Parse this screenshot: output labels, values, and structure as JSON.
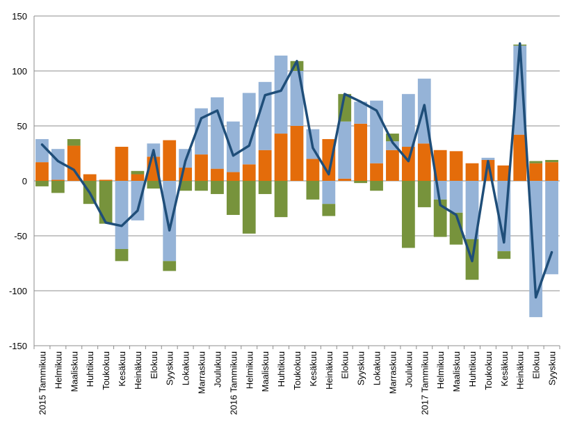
{
  "chart_data": {
    "type": "bar",
    "stacked": true,
    "ylim": [
      -150,
      150
    ],
    "yticks": [
      -150,
      -100,
      -50,
      0,
      50,
      100,
      150
    ],
    "grid": true,
    "legend": "none",
    "x_tick_labels": [
      "2015 Tammikuu",
      "Helmikuu",
      "Maaliskuu",
      "Huhtikuu",
      "Toukokuu",
      "Kesäkuu",
      "Heinäkuu",
      "Elokuu",
      "Syyskuu",
      "Lokakuu",
      "Marraskuu",
      "Joulukuu",
      "2016 Tammikuu",
      "Helmikuu",
      "Maaliskuu",
      "Huhtikuu",
      "Toukokuu",
      "Kesäkuu",
      "Heinäkuu",
      "Elokuu",
      "Syyskuu",
      "Lokakuu",
      "Marraskuu",
      "Joulukuu",
      "2017 Tammikuu",
      "Helmikuu",
      "Maaliskuu",
      "Huhtikuu",
      "Toukokuu",
      "Kesäkuu",
      "Heinäkuu",
      "Elokuu",
      "Syyskuu"
    ],
    "categories": [
      "2015-01",
      "2015-02",
      "2015-03",
      "2015-04",
      "2015-05",
      "2015-06",
      "2015-07",
      "2015-08",
      "2015-09",
      "2015-10",
      "2015-11",
      "2015-12",
      "2016-01",
      "2016-02",
      "2016-03",
      "2016-04",
      "2016-05",
      "2016-06",
      "2016-07",
      "2016-08",
      "2016-09",
      "2016-10",
      "2016-11",
      "2016-12",
      "2017-01",
      "2017-02",
      "2017-03",
      "2017-04",
      "2017-05",
      "2017-06",
      "2017-07",
      "2017-08",
      "2017-09"
    ],
    "series": [
      {
        "type": "bar",
        "color": "#e46c0a",
        "values": [
          17,
          1,
          32,
          6,
          1,
          31,
          6,
          22,
          37,
          12,
          24,
          11,
          8,
          15,
          28,
          43,
          50,
          20,
          38,
          2,
          52,
          16,
          28,
          31,
          34,
          28,
          27,
          16,
          19,
          14,
          42,
          16,
          17
        ]
      },
      {
        "type": "bar",
        "color": "#95b3d7",
        "values": [
          21,
          28,
          0,
          0,
          0,
          -62,
          -36,
          12,
          -73,
          17,
          42,
          65,
          46,
          65,
          62,
          71,
          50,
          27,
          -21,
          52,
          20,
          57,
          8,
          48,
          59,
          -17,
          -29,
          -53,
          2,
          -64,
          81,
          -124,
          -85
        ]
      },
      {
        "type": "bar",
        "color": "#77933c",
        "values": [
          -5,
          -11,
          6,
          -21,
          -39,
          -11,
          3,
          -7,
          -9,
          -9,
          -9,
          -12,
          -31,
          -48,
          -12,
          -33,
          9,
          -17,
          -11,
          25,
          -2,
          -9,
          7,
          -61,
          -24,
          -34,
          -29,
          -37,
          0,
          -7,
          1,
          2,
          2
        ]
      },
      {
        "type": "line",
        "color": "#1f4e79",
        "values": [
          33,
          18,
          10,
          -11,
          -38,
          -41,
          -27,
          28,
          -45,
          18,
          57,
          64,
          23,
          32,
          78,
          82,
          109,
          30,
          6,
          79,
          72,
          64,
          35,
          18,
          69,
          -22,
          -31,
          -73,
          18,
          -56,
          125,
          -106,
          -65
        ]
      }
    ]
  }
}
